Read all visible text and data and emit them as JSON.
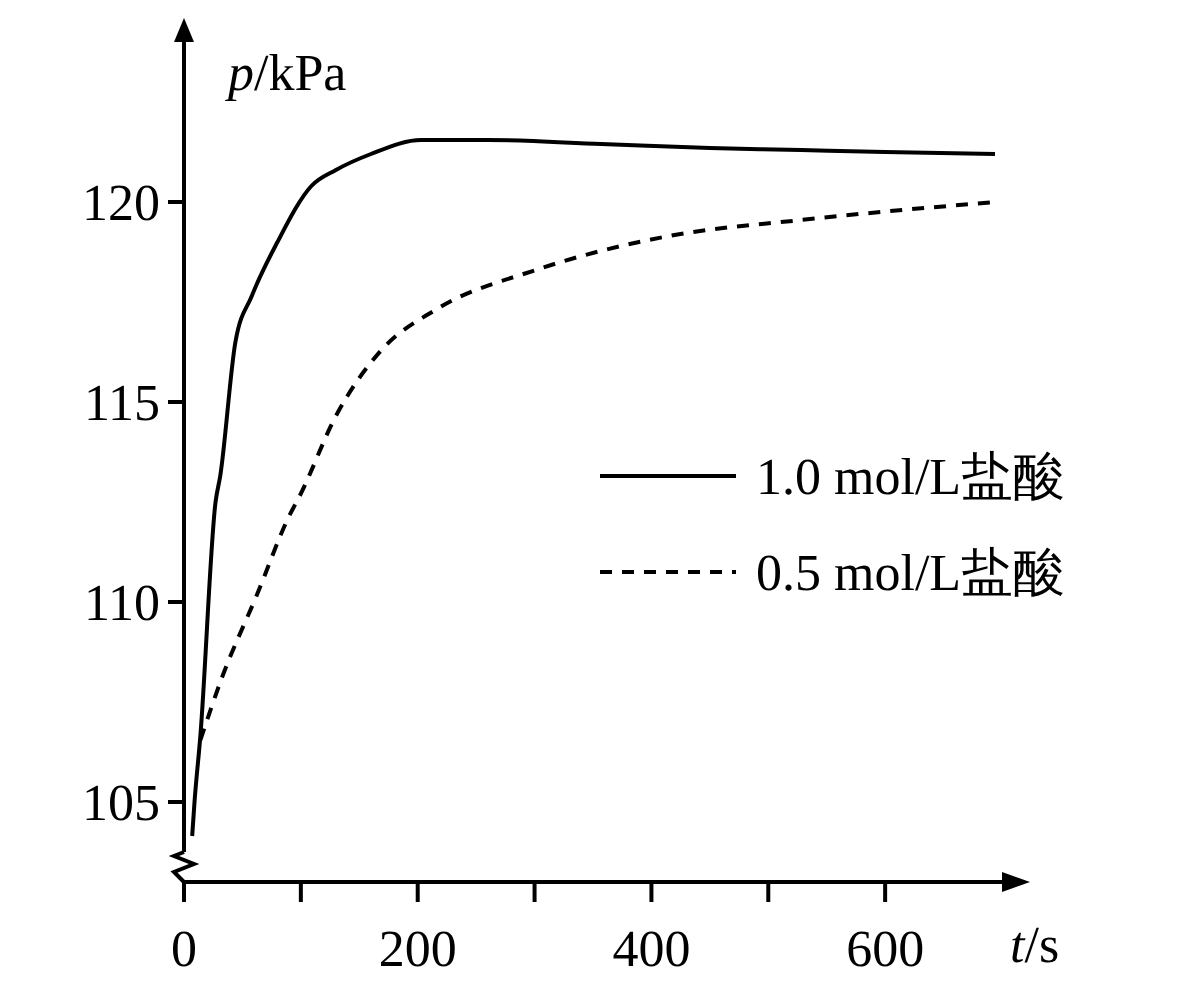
{
  "chart_data": {
    "type": "line",
    "xlabel": "t/s",
    "ylabel": "p/kPa",
    "xlim": [
      0,
      700
    ],
    "ylim": [
      103,
      124
    ],
    "xticks": [
      0,
      {
        "value": 100,
        "label": null
      },
      200,
      {
        "value": 300,
        "label": null
      },
      400,
      {
        "value": 500,
        "label": null
      },
      600
    ],
    "yticks": [
      105,
      110,
      115,
      120
    ],
    "grid": false,
    "legend": "right",
    "marker": "none",
    "series": [
      {
        "name": "1.0 mol/L盐酸",
        "color": "#000000",
        "line_style": "solid",
        "x": [
          7,
          9,
          14,
          27,
          31,
          44,
          58,
          80,
          109,
          130,
          160,
          203,
          260,
          357,
          450,
          528,
          600,
          694
        ],
        "values": [
          104.15,
          105,
          106.65,
          112.5,
          113.15,
          116.5,
          117.65,
          119,
          120.4,
          120.8,
          121.2,
          121.55,
          121.55,
          121.45,
          121.35,
          121.3,
          121.25,
          121.2
        ]
      },
      {
        "name": "0.5 mol/L盐酸",
        "color": "#000000",
        "line_style": "dashed",
        "x": [
          14,
          33,
          62,
          90,
          99,
          130,
          169,
          215,
          301,
          415,
          528,
          694
        ],
        "values": [
          106.55,
          108.15,
          110.15,
          112.15,
          112.65,
          114.65,
          116.3,
          117.3,
          118.3,
          119.15,
          119.55,
          120.0
        ]
      }
    ]
  }
}
